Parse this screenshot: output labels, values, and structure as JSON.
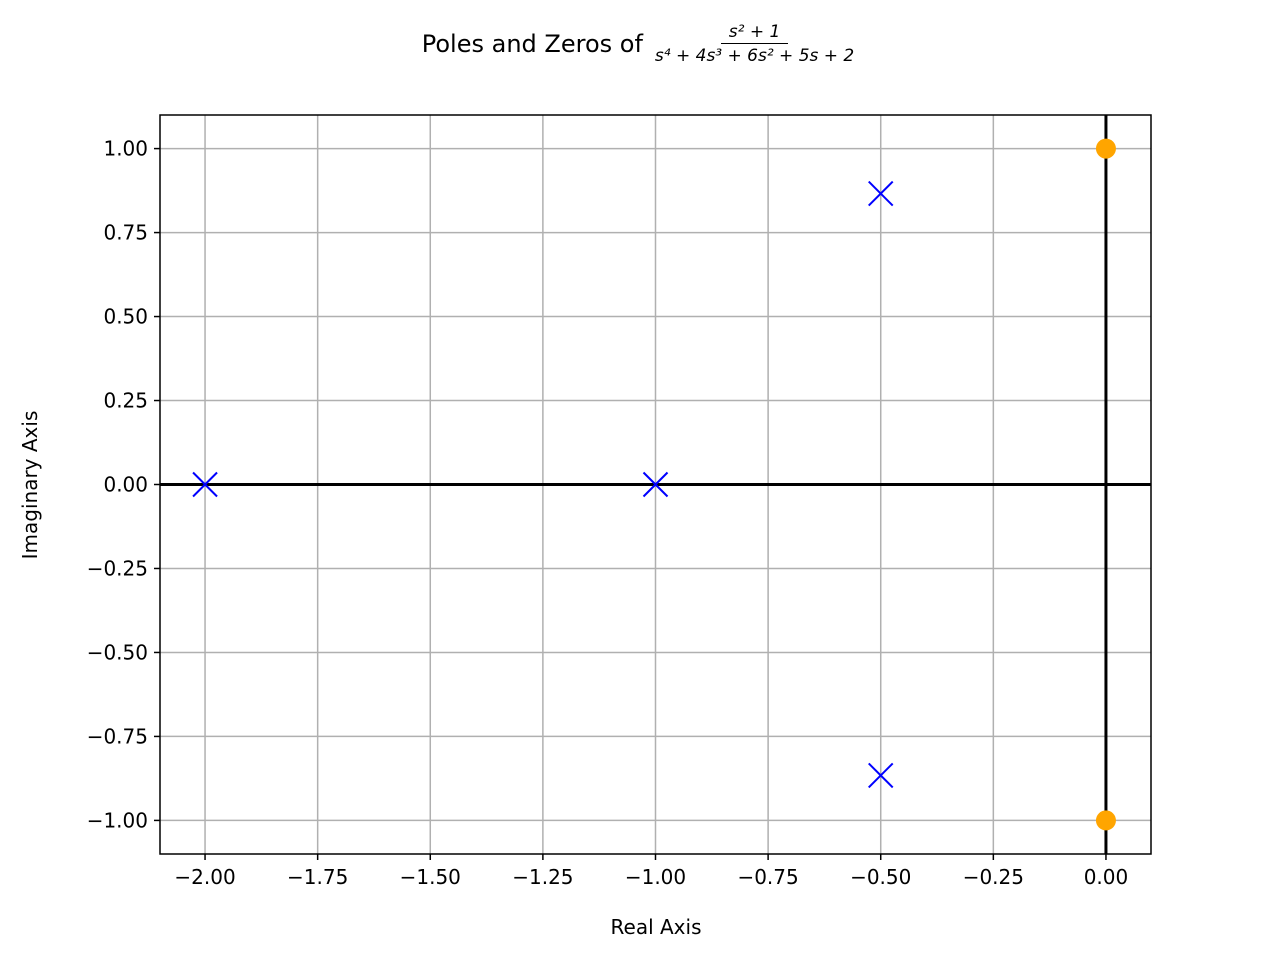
{
  "chart_data": {
    "type": "scatter",
    "title": "Poles and Zeros of",
    "title_fraction": {
      "numerator": "s² + 1",
      "denominator": "s⁴ + 4s³ + 6s² + 5s + 2"
    },
    "xlabel": "Real Axis",
    "ylabel": "Imaginary Axis",
    "xlim": [
      -2.1,
      0.1
    ],
    "ylim": [
      -1.1,
      1.1
    ],
    "grid": true,
    "xticks": [
      -2.0,
      -1.75,
      -1.5,
      -1.25,
      -1.0,
      -0.75,
      -0.5,
      -0.25,
      0.0
    ],
    "xtick_labels": [
      "−2.00",
      "−1.75",
      "−1.50",
      "−1.25",
      "−1.00",
      "−0.75",
      "−0.50",
      "−0.25",
      "0.00"
    ],
    "yticks": [
      1.0,
      0.75,
      0.5,
      0.25,
      0.0,
      -0.25,
      -0.5,
      -0.75,
      -1.0
    ],
    "ytick_labels": [
      "1.00",
      "0.75",
      "0.50",
      "0.25",
      "0.00",
      "−0.25",
      "−0.50",
      "−0.75",
      "−1.00"
    ],
    "series": [
      {
        "name": "poles",
        "marker": "x",
        "color": "#0000ff",
        "points": [
          [
            -2.0,
            0.0
          ],
          [
            -1.0,
            0.0
          ],
          [
            -0.5,
            0.866
          ],
          [
            -0.5,
            -0.866
          ]
        ]
      },
      {
        "name": "zeros",
        "marker": "o",
        "color": "#ffa500",
        "points": [
          [
            0.0,
            1.0
          ],
          [
            0.0,
            -1.0
          ]
        ]
      }
    ],
    "reference_lines": {
      "x": 0,
      "y": 0,
      "color": "#000000"
    }
  }
}
